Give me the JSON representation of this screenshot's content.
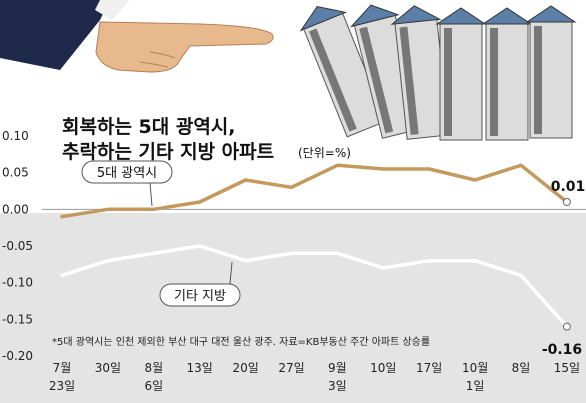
{
  "chart_data": {
    "type": "line",
    "title_line1": "회복하는 5대 광역시,",
    "title_line2": "추락하는 기타 지방 아파트",
    "unit": "(단위=%)",
    "categories": [
      {
        "line1": "7월",
        "line2": "23일"
      },
      {
        "line1": "30일",
        "line2": ""
      },
      {
        "line1": "8월",
        "line2": "6일"
      },
      {
        "line1": "13일",
        "line2": ""
      },
      {
        "line1": "20일",
        "line2": ""
      },
      {
        "line1": "27일",
        "line2": ""
      },
      {
        "line1": "9월",
        "line2": "3일"
      },
      {
        "line1": "10일",
        "line2": ""
      },
      {
        "line1": "17일",
        "line2": ""
      },
      {
        "line1": "10월",
        "line2": "1일"
      },
      {
        "line1": "8일",
        "line2": ""
      },
      {
        "line1": "15일",
        "line2": ""
      }
    ],
    "series": [
      {
        "name": "5대 광역시",
        "color": "#c49a5c",
        "values": [
          -0.01,
          0.0,
          0.0,
          0.01,
          0.04,
          0.03,
          0.06,
          0.055,
          0.055,
          0.04,
          0.06,
          0.01
        ],
        "end_label": "0.01"
      },
      {
        "name": "기타 지방",
        "color": "#ffffff",
        "values": [
          -0.09,
          -0.07,
          -0.06,
          -0.05,
          -0.07,
          -0.06,
          -0.06,
          -0.08,
          -0.07,
          -0.07,
          -0.09,
          -0.16
        ],
        "end_label": "-0.16"
      }
    ],
    "yticks": [
      "0.10",
      "0.05",
      "0.00",
      "-0.05",
      "-0.10",
      "-0.15",
      "-0.20"
    ],
    "ylim": [
      -0.2,
      0.1
    ],
    "note": "*5대 광역시는 인천 제외한 부산 대구 대전 울산 광주. 자료=KB부동산 주간 아파트 상승률",
    "colors": {
      "upper_background": "#ffffff",
      "lower_background": "#e4e4e4",
      "suit": "#1f2a4a"
    },
    "illustration": {
      "description_icons": [
        "pointing-hand-icon",
        "domino-apartment-icon"
      ]
    }
  }
}
